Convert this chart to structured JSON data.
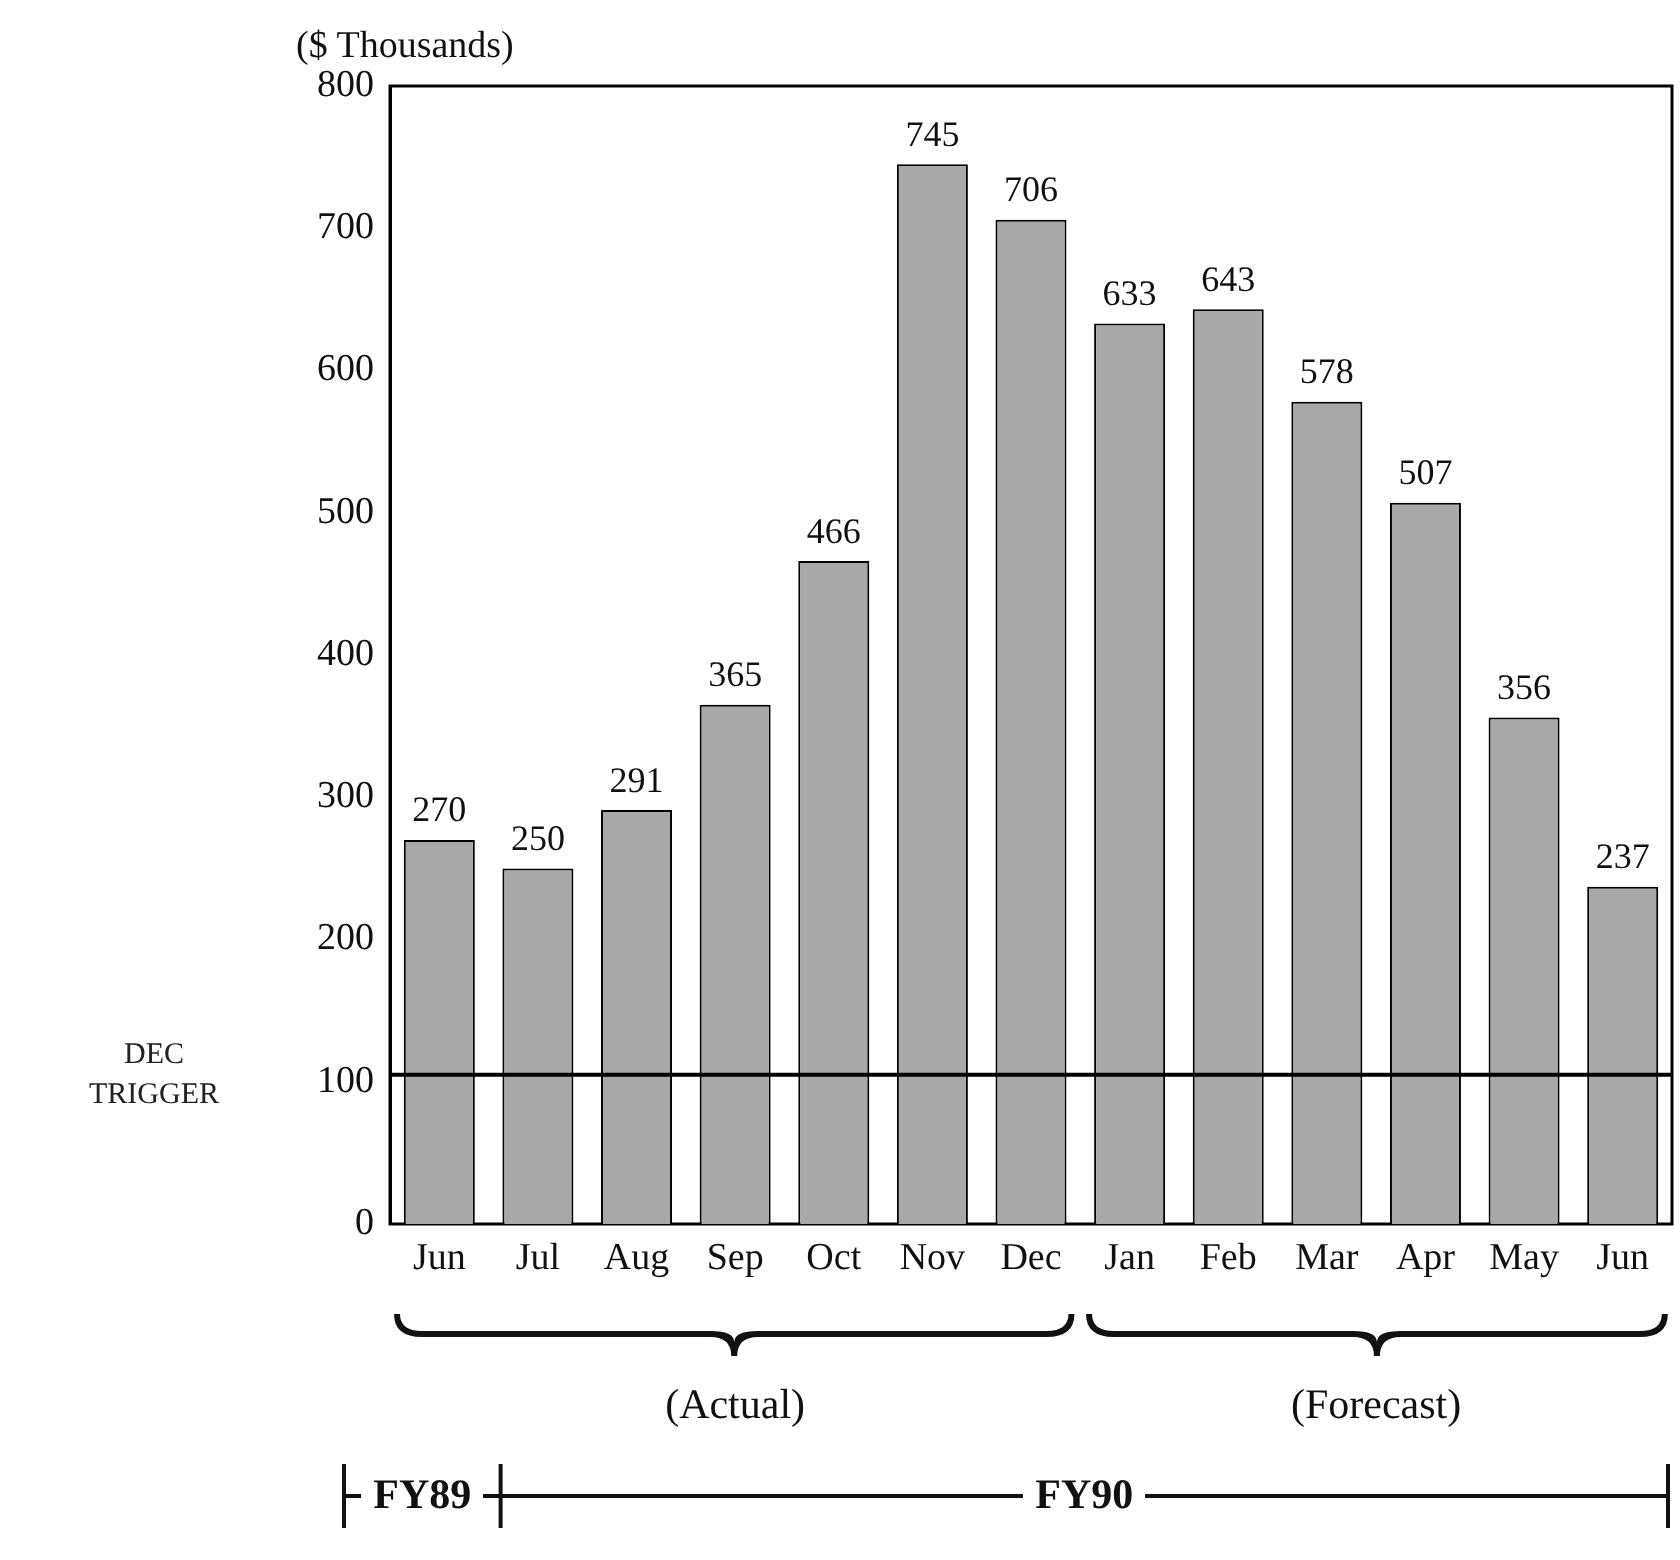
{
  "chart_data": {
    "type": "bar",
    "ylabel": "($ Thousands)",
    "categories": [
      "Jun",
      "Jul",
      "Aug",
      "Sep",
      "Oct",
      "Nov",
      "Dec",
      "Jan",
      "Feb",
      "Mar",
      "Apr",
      "May",
      "Jun"
    ],
    "values": [
      270,
      250,
      291,
      365,
      466,
      745,
      706,
      633,
      643,
      578,
      507,
      356,
      237
    ],
    "color": "#a8a8a8",
    "ylim": [
      0,
      800
    ],
    "yticks": [
      0,
      100,
      200,
      300,
      400,
      500,
      600,
      700,
      800
    ],
    "grid": false,
    "legend": false,
    "data_labels": true,
    "ref_lines": [
      {
        "axis": "y",
        "value": 105,
        "label": "DEC TRIGGER",
        "color": "#000000"
      }
    ],
    "annotations": [
      "(Actual)",
      "(Forecast)",
      "FY89",
      "FY90"
    ]
  }
}
